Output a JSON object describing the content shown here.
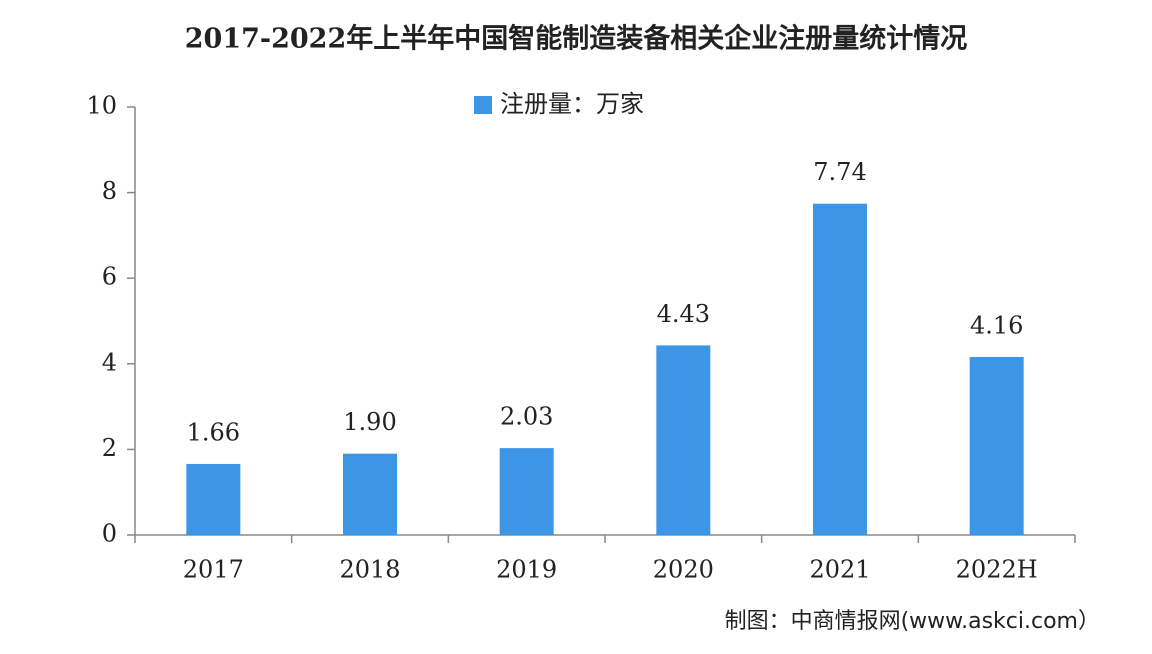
{
  "chart_data": {
    "type": "bar",
    "title": "2017-2022年上半年中国智能制造装备相关企业注册量统计情况",
    "categories": [
      "2017",
      "2018",
      "2019",
      "2020",
      "2021",
      "2022H"
    ],
    "series": [
      {
        "name": "注册量：万家",
        "color": "#3d95e6",
        "values": [
          1.66,
          1.9,
          2.03,
          4.43,
          7.74,
          4.16
        ],
        "value_labels": [
          "1.66",
          "1.90",
          "2.03",
          "4.43",
          "7.74",
          "4.16"
        ]
      }
    ],
    "ylim": [
      0,
      10
    ],
    "yticks": [
      0,
      2,
      4,
      6,
      8,
      10
    ],
    "grid": false,
    "legend": "top",
    "source": "制图：中商情报网(www.askci.com）"
  }
}
